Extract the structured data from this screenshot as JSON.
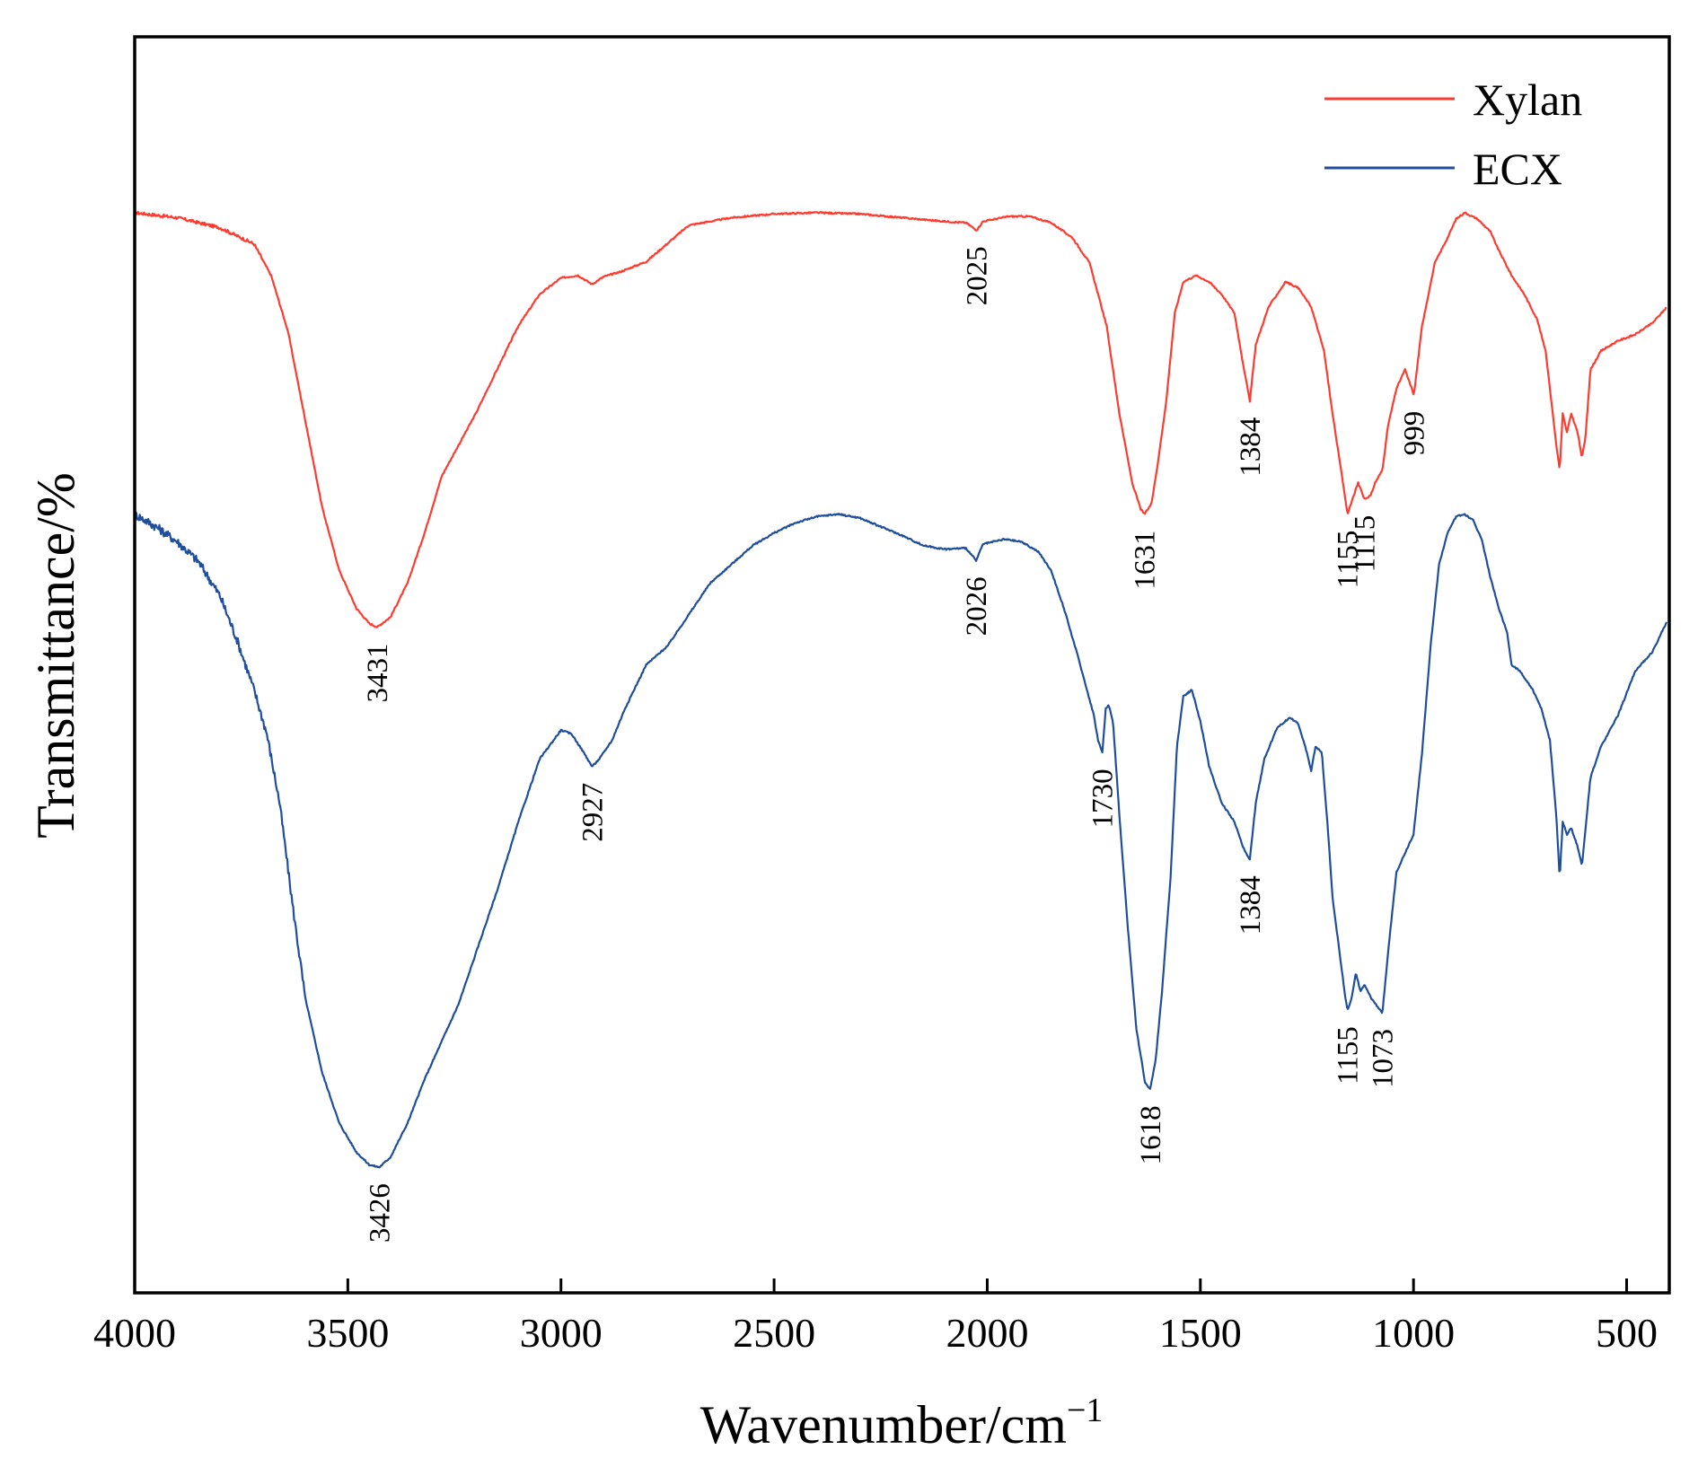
{
  "chart_data": {
    "type": "line",
    "title": "",
    "xlabel": "Wavenumber/cm",
    "xlabel_superscript": "−1",
    "ylabel": "Transmittance/%",
    "xlim": [
      4000,
      400
    ],
    "x_reversed": true,
    "ylim": [
      0,
      100
    ],
    "y_ticks_shown": false,
    "grid": false,
    "legend_position": "top-right",
    "x_ticks": [
      4000,
      3500,
      3000,
      2500,
      2000,
      1500,
      1000,
      500
    ],
    "x_tick_labels": [
      "4000",
      "3500",
      "3000",
      "2500",
      "2000",
      "1500",
      "1000",
      "500"
    ],
    "series": [
      {
        "name": "Xylan",
        "color": "#ff3b30",
        "points": [
          [
            4000,
            86.0
          ],
          [
            3900,
            85.6
          ],
          [
            3800,
            84.8
          ],
          [
            3720,
            83.5
          ],
          [
            3680,
            81.0
          ],
          [
            3640,
            76.5
          ],
          [
            3600,
            69.5
          ],
          [
            3560,
            62.5
          ],
          [
            3520,
            57.5
          ],
          [
            3480,
            54.5
          ],
          [
            3450,
            53.3
          ],
          [
            3431,
            53.0
          ],
          [
            3400,
            53.8
          ],
          [
            3360,
            56.5
          ],
          [
            3320,
            60.5
          ],
          [
            3280,
            65.0
          ],
          [
            3240,
            67.5
          ],
          [
            3200,
            70.0
          ],
          [
            3150,
            73.5
          ],
          [
            3100,
            77.0
          ],
          [
            3050,
            79.5
          ],
          [
            3000,
            80.8
          ],
          [
            2960,
            81.0
          ],
          [
            2927,
            80.3
          ],
          [
            2900,
            80.9
          ],
          [
            2860,
            81.3
          ],
          [
            2800,
            82.1
          ],
          [
            2700,
            85.0
          ],
          [
            2600,
            85.6
          ],
          [
            2500,
            85.9
          ],
          [
            2400,
            86.0
          ],
          [
            2300,
            85.9
          ],
          [
            2200,
            85.6
          ],
          [
            2100,
            85.3
          ],
          [
            2050,
            85.2
          ],
          [
            2025,
            84.6
          ],
          [
            2010,
            85.3
          ],
          [
            1950,
            85.7
          ],
          [
            1900,
            85.7
          ],
          [
            1850,
            85.2
          ],
          [
            1800,
            84.0
          ],
          [
            1760,
            82.0
          ],
          [
            1720,
            77.0
          ],
          [
            1690,
            70.0
          ],
          [
            1660,
            64.5
          ],
          [
            1640,
            62.4
          ],
          [
            1631,
            62.0
          ],
          [
            1615,
            62.8
          ],
          [
            1600,
            66.0
          ],
          [
            1580,
            71.0
          ],
          [
            1560,
            78.0
          ],
          [
            1540,
            80.5
          ],
          [
            1510,
            81.0
          ],
          [
            1480,
            80.5
          ],
          [
            1450,
            79.5
          ],
          [
            1420,
            78.0
          ],
          [
            1400,
            74.0
          ],
          [
            1384,
            71.0
          ],
          [
            1370,
            75.5
          ],
          [
            1340,
            78.5
          ],
          [
            1300,
            80.5
          ],
          [
            1270,
            80.0
          ],
          [
            1240,
            78.5
          ],
          [
            1210,
            75.0
          ],
          [
            1190,
            70.0
          ],
          [
            1170,
            65.5
          ],
          [
            1160,
            63.2
          ],
          [
            1155,
            62.0
          ],
          [
            1140,
            63.5
          ],
          [
            1130,
            64.5
          ],
          [
            1115,
            63.2
          ],
          [
            1100,
            63.5
          ],
          [
            1090,
            64.5
          ],
          [
            1073,
            65.5
          ],
          [
            1060,
            69.0
          ],
          [
            1040,
            72.0
          ],
          [
            1020,
            73.5
          ],
          [
            999,
            71.5
          ],
          [
            980,
            77.0
          ],
          [
            950,
            82.0
          ],
          [
            920,
            84.0
          ],
          [
            900,
            85.5
          ],
          [
            880,
            86.0
          ],
          [
            850,
            85.5
          ],
          [
            820,
            84.5
          ],
          [
            800,
            83.0
          ],
          [
            770,
            81.0
          ],
          [
            740,
            79.5
          ],
          [
            710,
            77.5
          ],
          [
            690,
            75.0
          ],
          [
            665,
            67.5
          ],
          [
            657,
            65.5
          ],
          [
            650,
            70.0
          ],
          [
            640,
            68.5
          ],
          [
            630,
            70.0
          ],
          [
            615,
            68.5
          ],
          [
            605,
            66.5
          ],
          [
            597,
            68.0
          ],
          [
            585,
            73.5
          ],
          [
            560,
            75.0
          ],
          [
            520,
            75.8
          ],
          [
            480,
            76.3
          ],
          [
            440,
            77.2
          ],
          [
            405,
            78.5
          ]
        ]
      },
      {
        "name": "ECX",
        "color": "#1f4e9c",
        "points": [
          [
            4000,
            62.0
          ],
          [
            3950,
            61.0
          ],
          [
            3900,
            59.8
          ],
          [
            3850,
            58.2
          ],
          [
            3800,
            55.5
          ],
          [
            3760,
            52.0
          ],
          [
            3720,
            48.0
          ],
          [
            3690,
            44.5
          ],
          [
            3660,
            39.0
          ],
          [
            3630,
            31.0
          ],
          [
            3600,
            23.5
          ],
          [
            3560,
            17.5
          ],
          [
            3520,
            13.5
          ],
          [
            3480,
            11.2
          ],
          [
            3450,
            10.2
          ],
          [
            3426,
            10.0
          ],
          [
            3400,
            10.8
          ],
          [
            3360,
            13.5
          ],
          [
            3320,
            17.0
          ],
          [
            3280,
            20.0
          ],
          [
            3240,
            23.0
          ],
          [
            3200,
            27.0
          ],
          [
            3150,
            32.0
          ],
          [
            3100,
            37.5
          ],
          [
            3050,
            42.5
          ],
          [
            3000,
            44.8
          ],
          [
            2975,
            44.5
          ],
          [
            2950,
            43.2
          ],
          [
            2927,
            41.9
          ],
          [
            2910,
            42.5
          ],
          [
            2880,
            44.0
          ],
          [
            2850,
            46.5
          ],
          [
            2800,
            50.0
          ],
          [
            2750,
            51.5
          ],
          [
            2700,
            54.0
          ],
          [
            2650,
            56.5
          ],
          [
            2600,
            58.0
          ],
          [
            2550,
            59.5
          ],
          [
            2500,
            60.5
          ],
          [
            2450,
            61.3
          ],
          [
            2400,
            61.8
          ],
          [
            2350,
            62.0
          ],
          [
            2300,
            61.7
          ],
          [
            2250,
            61.0
          ],
          [
            2200,
            60.3
          ],
          [
            2150,
            59.5
          ],
          [
            2100,
            59.2
          ],
          [
            2050,
            59.3
          ],
          [
            2026,
            58.3
          ],
          [
            2010,
            59.6
          ],
          [
            1960,
            60.0
          ],
          [
            1920,
            59.8
          ],
          [
            1880,
            59.0
          ],
          [
            1850,
            57.5
          ],
          [
            1820,
            54.5
          ],
          [
            1790,
            51.0
          ],
          [
            1770,
            48.5
          ],
          [
            1750,
            46.0
          ],
          [
            1740,
            44.0
          ],
          [
            1730,
            43.0
          ],
          [
            1722,
            46.5
          ],
          [
            1715,
            46.8
          ],
          [
            1705,
            45.5
          ],
          [
            1690,
            38.0
          ],
          [
            1670,
            29.0
          ],
          [
            1650,
            21.0
          ],
          [
            1630,
            16.8
          ],
          [
            1618,
            16.2
          ],
          [
            1605,
            18.5
          ],
          [
            1590,
            24.0
          ],
          [
            1570,
            33.0
          ],
          [
            1555,
            43.5
          ],
          [
            1540,
            47.5
          ],
          [
            1520,
            48.0
          ],
          [
            1500,
            45.5
          ],
          [
            1480,
            42.0
          ],
          [
            1450,
            39.0
          ],
          [
            1420,
            37.5
          ],
          [
            1400,
            35.5
          ],
          [
            1384,
            34.5
          ],
          [
            1370,
            39.0
          ],
          [
            1350,
            42.5
          ],
          [
            1320,
            45.0
          ],
          [
            1290,
            45.8
          ],
          [
            1270,
            45.3
          ],
          [
            1250,
            43.0
          ],
          [
            1240,
            41.5
          ],
          [
            1230,
            43.5
          ],
          [
            1215,
            43.0
          ],
          [
            1200,
            36.5
          ],
          [
            1190,
            31.5
          ],
          [
            1175,
            27.5
          ],
          [
            1160,
            23.5
          ],
          [
            1155,
            22.5
          ],
          [
            1145,
            23.5
          ],
          [
            1135,
            25.5
          ],
          [
            1125,
            24.0
          ],
          [
            1115,
            24.5
          ],
          [
            1100,
            23.5
          ],
          [
            1085,
            22.8
          ],
          [
            1073,
            22.3
          ],
          [
            1060,
            27.0
          ],
          [
            1040,
            33.5
          ],
          [
            1020,
            35.0
          ],
          [
            1000,
            36.5
          ],
          [
            980,
            43.0
          ],
          [
            960,
            51.5
          ],
          [
            940,
            58.0
          ],
          [
            920,
            60.5
          ],
          [
            900,
            61.8
          ],
          [
            880,
            62.0
          ],
          [
            860,
            61.5
          ],
          [
            840,
            60.0
          ],
          [
            820,
            57.0
          ],
          [
            800,
            54.5
          ],
          [
            780,
            52.5
          ],
          [
            770,
            50.0
          ],
          [
            750,
            49.5
          ],
          [
            720,
            48.0
          ],
          [
            700,
            46.5
          ],
          [
            680,
            44.0
          ],
          [
            665,
            38.0
          ],
          [
            657,
            33.0
          ],
          [
            650,
            37.5
          ],
          [
            640,
            36.5
          ],
          [
            630,
            37.0
          ],
          [
            615,
            35.5
          ],
          [
            605,
            34.0
          ],
          [
            595,
            37.5
          ],
          [
            585,
            41.0
          ],
          [
            560,
            43.5
          ],
          [
            520,
            46.0
          ],
          [
            480,
            49.5
          ],
          [
            440,
            51.0
          ],
          [
            405,
            53.5
          ]
        ]
      }
    ],
    "annotations": [
      {
        "series": "Xylan",
        "label": "3431",
        "x": 3431
      },
      {
        "series": "Xylan",
        "label": "2025",
        "x": 2025
      },
      {
        "series": "Xylan",
        "label": "1631",
        "x": 1631
      },
      {
        "series": "Xylan",
        "label": "1384",
        "x": 1384
      },
      {
        "series": "Xylan",
        "label": "1155",
        "x": 1155
      },
      {
        "series": "Xylan",
        "label": "1115",
        "x": 1115
      },
      {
        "series": "Xylan",
        "label": "999",
        "x": 999
      },
      {
        "series": "ECX",
        "label": "3426",
        "x": 3426
      },
      {
        "series": "ECX",
        "label": "2927",
        "x": 2927
      },
      {
        "series": "ECX",
        "label": "2026",
        "x": 2026
      },
      {
        "series": "ECX",
        "label": "1730",
        "x": 1730
      },
      {
        "series": "ECX",
        "label": "1618",
        "x": 1618
      },
      {
        "series": "ECX",
        "label": "1384",
        "x": 1384
      },
      {
        "series": "ECX",
        "label": "1155",
        "x": 1155
      },
      {
        "series": "ECX",
        "label": "1073",
        "x": 1073
      }
    ]
  }
}
